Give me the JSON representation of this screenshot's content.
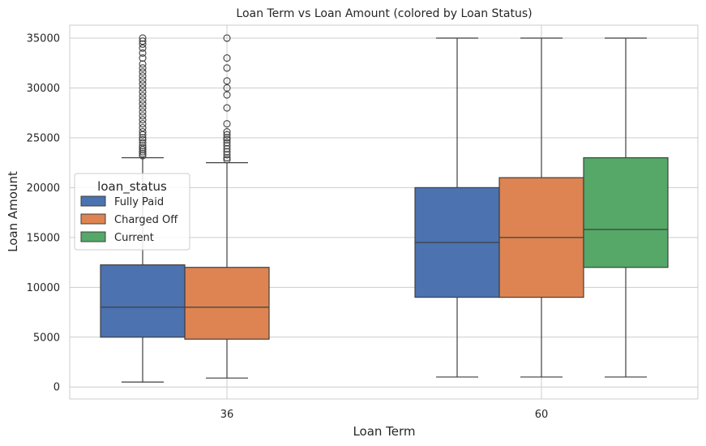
{
  "chart_data": {
    "type": "box",
    "title": "Loan Term vs Loan Amount (colored by Loan Status)",
    "xlabel": "Loan Term",
    "ylabel": "Loan Amount",
    "ylim": [
      -1200,
      36300
    ],
    "yticks": [
      0,
      5000,
      10000,
      15000,
      20000,
      25000,
      30000,
      35000
    ],
    "grid": true,
    "categories": [
      "36",
      "60"
    ],
    "legend": {
      "title": "loan_status",
      "placement": "center-left",
      "entries": [
        "Fully Paid",
        "Charged Off",
        "Current"
      ]
    },
    "series": [
      {
        "name": "Fully Paid",
        "color": "#4c72b0",
        "boxes": [
          {
            "category": "36",
            "whislo": 500,
            "q1": 5000,
            "med": 8000,
            "q3": 12250,
            "whishi": 23000,
            "fliers": [
              23200,
              23400,
              23600,
              23800,
              24000,
              24200,
              24500,
              24800,
              25000,
              25300,
              25600,
              26000,
              26400,
              26800,
              27200,
              27600,
              28000,
              28400,
              28800,
              29200,
              29600,
              30000,
              30400,
              30800,
              31200,
              31600,
              32000,
              32400,
              33000,
              33500,
              34000,
              34400,
              34700,
              35000
            ]
          },
          {
            "category": "60",
            "whislo": 1000,
            "q1": 9000,
            "med": 14500,
            "q3": 20000,
            "whishi": 35000,
            "fliers": []
          }
        ]
      },
      {
        "name": "Charged Off",
        "color": "#dd8452",
        "boxes": [
          {
            "category": "36",
            "whislo": 900,
            "q1": 4800,
            "med": 8000,
            "q3": 12000,
            "whishi": 22500,
            "fliers": [
              22800,
              23000,
              23300,
              23600,
              23900,
              24200,
              24500,
              24800,
              25000,
              25300,
              25600,
              26400,
              28000,
              29300,
              30000,
              30700,
              32000,
              33000,
              35000
            ]
          },
          {
            "category": "60",
            "whislo": 1000,
            "q1": 9000,
            "med": 15000,
            "q3": 21000,
            "whishi": 35000,
            "fliers": []
          }
        ]
      },
      {
        "name": "Current",
        "color": "#55a868",
        "boxes": [
          {
            "category": "60",
            "whislo": 1000,
            "q1": 12000,
            "med": 15800,
            "q3": 23000,
            "whishi": 35000,
            "fliers": []
          }
        ]
      }
    ]
  }
}
